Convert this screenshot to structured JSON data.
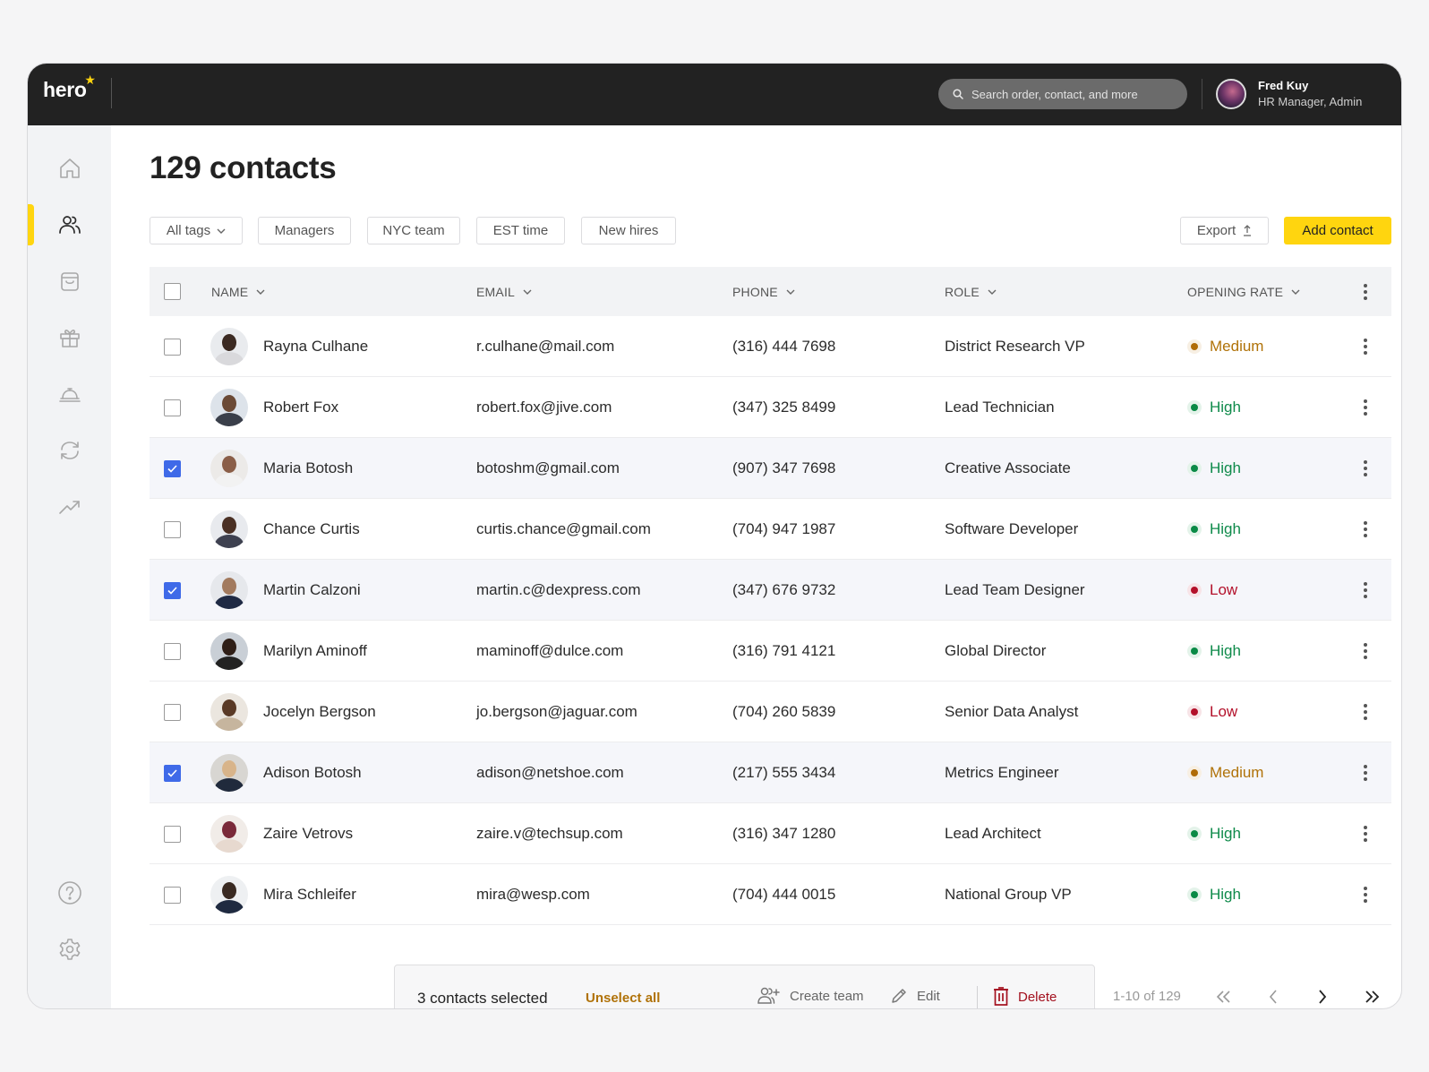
{
  "app": {
    "logo": "hero",
    "search": {
      "placeholder": "Search order, contact, and more",
      "value": ""
    },
    "user": {
      "name": "Fred Kuy",
      "role": "HR Manager, Admin"
    }
  },
  "sidebar": {
    "items": [
      {
        "id": "home",
        "icon": "home-icon",
        "active": false
      },
      {
        "id": "contacts",
        "icon": "users-icon",
        "active": true
      },
      {
        "id": "orders",
        "icon": "shopping-bag-icon",
        "active": false
      },
      {
        "id": "gifts",
        "icon": "gift-icon",
        "active": false
      },
      {
        "id": "services",
        "icon": "service-bell-icon",
        "active": false
      },
      {
        "id": "sync",
        "icon": "refresh-icon",
        "active": false
      },
      {
        "id": "analytics",
        "icon": "trending-up-icon",
        "active": false
      }
    ],
    "bottom": [
      {
        "id": "help",
        "icon": "help-circle-icon"
      },
      {
        "id": "settings",
        "icon": "gear-icon"
      }
    ]
  },
  "page": {
    "title": "129 contacts",
    "filters": [
      {
        "label": "All tags",
        "dropdown": true
      },
      {
        "label": "Managers",
        "dropdown": false
      },
      {
        "label": "NYC team",
        "dropdown": false
      },
      {
        "label": "EST time",
        "dropdown": false
      },
      {
        "label": "New hires",
        "dropdown": false
      }
    ],
    "export_label": "Export",
    "add_label": "Add contact"
  },
  "table": {
    "columns": [
      "NAME",
      "EMAIL",
      "PHONE",
      "ROLE",
      "OPENING RATE"
    ],
    "rows": [
      {
        "name": "Rayna Culhane",
        "email": "r.culhane@mail.com",
        "phone": "(316) 444 7698",
        "role": "District Research VP",
        "rate": "Medium",
        "checked": false
      },
      {
        "name": "Robert Fox",
        "email": "robert.fox@jive.com",
        "phone": "(347) 325 8499",
        "role": "Lead Technician",
        "rate": "High",
        "checked": false
      },
      {
        "name": "Maria Botosh",
        "email": "botoshm@gmail.com",
        "phone": "(907) 347 7698",
        "role": "Creative Associate",
        "rate": "High",
        "checked": true
      },
      {
        "name": "Chance Curtis",
        "email": "curtis.chance@gmail.com",
        "phone": "(704) 947 1987",
        "role": "Software Developer",
        "rate": "High",
        "checked": false
      },
      {
        "name": "Martin Calzoni",
        "email": "martin.c@dexpress.com",
        "phone": "(347) 676 9732",
        "role": "Lead Team Designer",
        "rate": "Low",
        "checked": true
      },
      {
        "name": "Marilyn Aminoff",
        "email": "maminoff@dulce.com",
        "phone": "(316) 791  4121",
        "role": "Global Director",
        "rate": "High",
        "checked": false
      },
      {
        "name": "Jocelyn Bergson",
        "email": "jo.bergson@jaguar.com",
        "phone": "(704) 260 5839",
        "role": "Senior Data Analyst",
        "rate": "Low",
        "checked": false
      },
      {
        "name": "Adison Botosh",
        "email": "adison@netshoe.com",
        "phone": "(217)  555 3434",
        "role": "Metrics Engineer",
        "rate": "Medium",
        "checked": true
      },
      {
        "name": "Zaire Vetrovs",
        "email": "zaire.v@techsup.com",
        "phone": "(316) 347 1280",
        "role": "Lead Architect",
        "rate": "High",
        "checked": false
      },
      {
        "name": "Mira Schleifer",
        "email": "mira@wesp.com",
        "phone": "(704) 444 0015",
        "role": "National Group VP",
        "rate": "High",
        "checked": false
      }
    ]
  },
  "rate_colors": {
    "High": {
      "text": "#0e8a4a",
      "dot": "#0a8a46",
      "halo": "#e4f3ea"
    },
    "Medium": {
      "text": "#b07208",
      "dot": "#b06c08",
      "halo": "#f7efe3"
    },
    "Low": {
      "text": "#b3102a",
      "dot": "#b3102a",
      "halo": "#f7e4e7"
    }
  },
  "selection_bar": {
    "count_label": "3 contacts selected",
    "unselect_label": "Unselect all",
    "create_team_label": "Create team",
    "edit_label": "Edit",
    "delete_label": "Delete"
  },
  "pagination": {
    "range_label": "1-10 of 129"
  },
  "colors": {
    "accent": "#ffd50f",
    "topbar": "#222222",
    "checkbox": "#3f6ae8",
    "danger": "#a3101e"
  }
}
